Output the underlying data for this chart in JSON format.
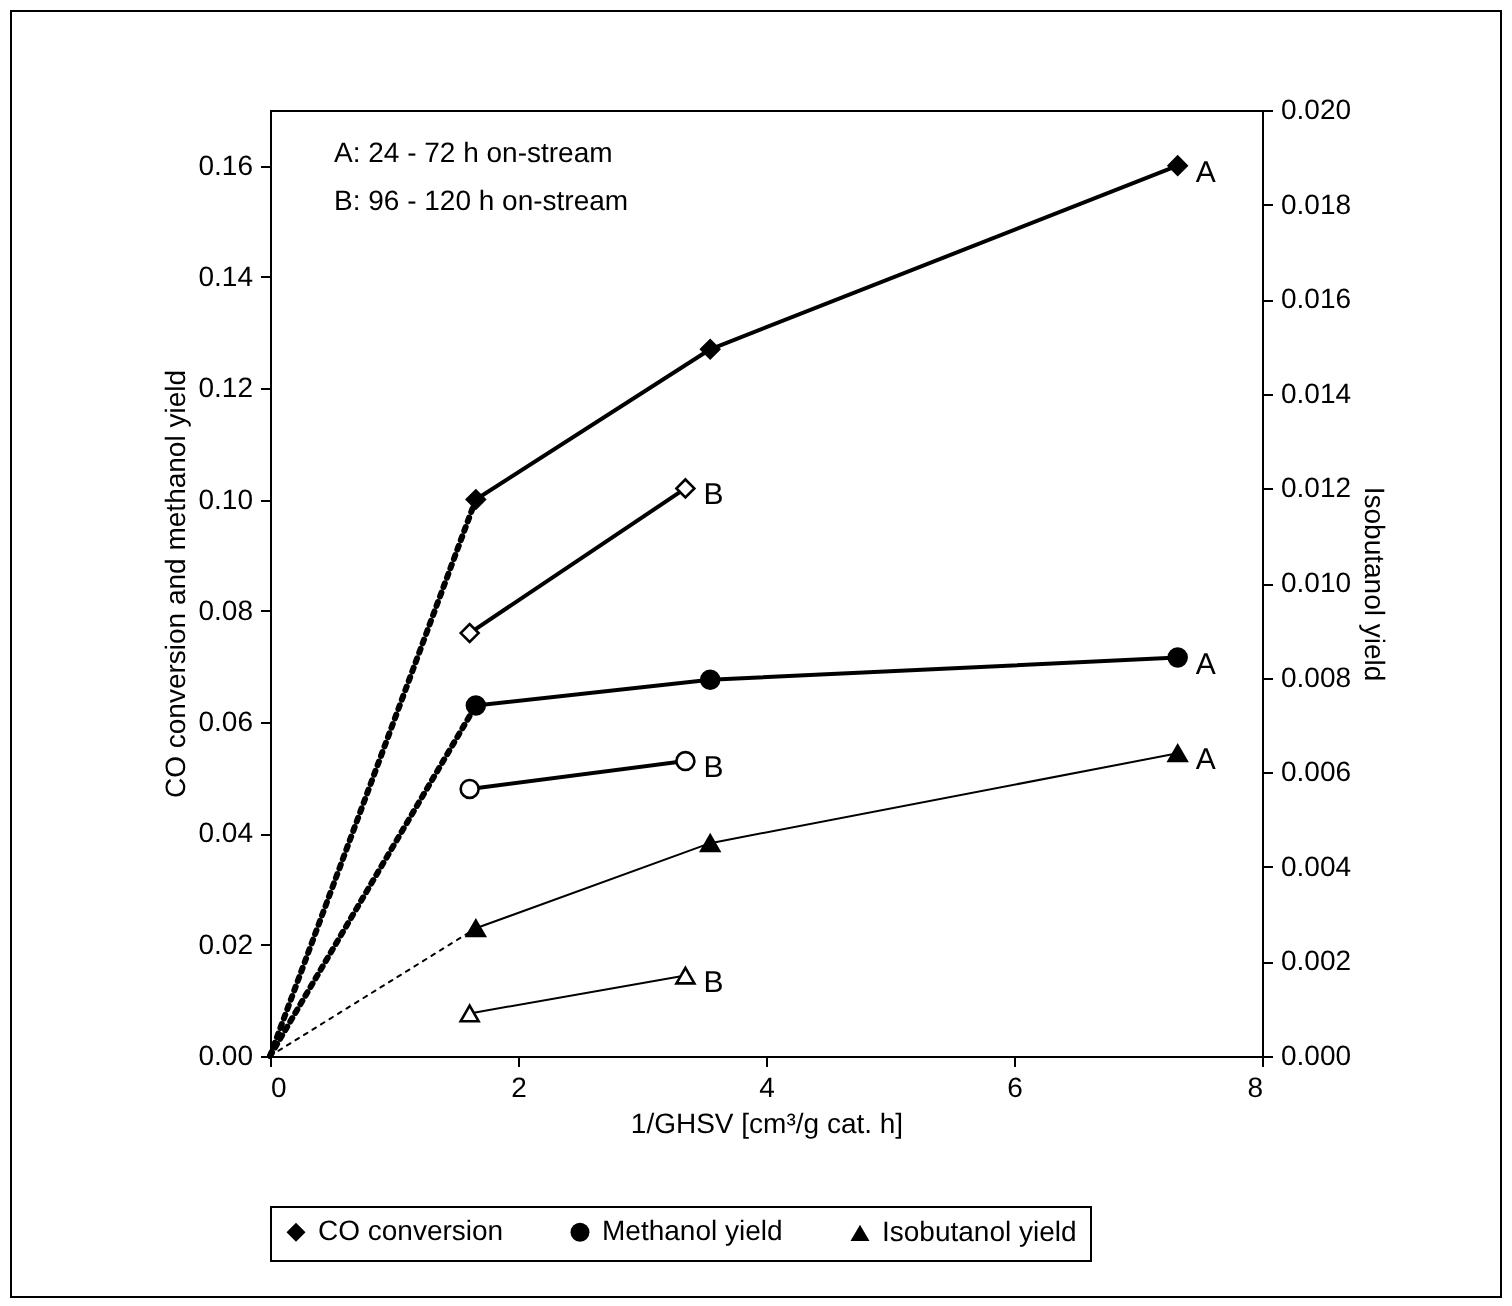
{
  "chart_data": {
    "type": "line",
    "xlabel": "1/GHSV [cm³/g cat. h]",
    "ylabel": "CO conversion and methanol yield",
    "y2label": "Isobutanol yield",
    "xlim": [
      0,
      8
    ],
    "xticks": [
      0,
      2,
      4,
      6,
      8
    ],
    "ylim": [
      0,
      0.17
    ],
    "yticks": [
      {
        "value": 0,
        "label": "0.00"
      },
      0.02,
      0.04,
      0.06,
      0.08,
      {
        "value": 0.1,
        "label": "0.10"
      },
      0.12,
      0.14,
      0.16
    ],
    "y2lim": [
      0,
      0.02
    ],
    "y2ticks": [
      {
        "value": 0,
        "label": "0.000"
      },
      0.002,
      0.004,
      0.006,
      0.008,
      {
        "value": 0.01,
        "label": "0.010"
      },
      0.012,
      0.014,
      0.016,
      0.018,
      {
        "value": 0.02,
        "label": "0.020"
      }
    ],
    "grid": false,
    "legend": "bottom",
    "series": [
      {
        "name": "CO conversion",
        "color": "#000000",
        "marker": "diamond",
        "x": [
          1.66,
          3.55,
          7.32
        ],
        "values": [
          0.1,
          0.127,
          0.16
        ],
        "value_labels": [
          null,
          null,
          "A"
        ]
      },
      {
        "name": "Methanol yield",
        "color": "#000000",
        "marker": "circle",
        "x": [
          1.66,
          3.55,
          7.32
        ],
        "values": [
          0.063,
          0.0676,
          0.0716
        ],
        "value_labels": [
          null,
          null,
          "A"
        ]
      },
      {
        "name": "Isobutanol yield",
        "color": "#000000",
        "marker": "triangle",
        "axis": "y2",
        "x": [
          1.66,
          3.55,
          7.32
        ],
        "values": [
          0.0027,
          0.0045,
          0.0064
        ],
        "value_labels": [
          null,
          null,
          "A"
        ]
      },
      {
        "color": "#000000",
        "marker": "diamond",
        "x": [
          1.61,
          3.35
        ],
        "values": [
          0.076,
          0.102
        ],
        "value_labels": [
          null,
          "B"
        ]
      },
      {
        "color": "#000000",
        "marker": "circle",
        "x": [
          1.61,
          3.35
        ],
        "values": [
          0.048,
          0.053
        ],
        "value_labels": [
          null,
          "B"
        ]
      },
      {
        "color": "#000000",
        "marker": "triangle",
        "axis": "y2",
        "x": [
          1.61,
          3.35
        ],
        "values": [
          0.0009,
          0.0017
        ],
        "value_labels": [
          null,
          "B"
        ]
      },
      {
        "type": "line",
        "color": "#000000",
        "marker": "none",
        "line_style": "dotted",
        "x": [
          0,
          1.66
        ],
        "values": [
          0,
          0.1
        ]
      },
      {
        "type": "line",
        "color": "#000000",
        "marker": "none",
        "line_style": "dotted",
        "x": [
          0,
          1.66
        ],
        "values": [
          0,
          0.063
        ]
      },
      {
        "type": "line",
        "color": "#000000",
        "marker": "none",
        "line_style": "dotted",
        "axis": "y2",
        "x": [
          0,
          1.66
        ],
        "values": [
          0,
          0.0027
        ]
      }
    ],
    "annotations": [
      "A: 24 - 72 h on-stream",
      "B: 96 - 120 h on-stream"
    ]
  }
}
